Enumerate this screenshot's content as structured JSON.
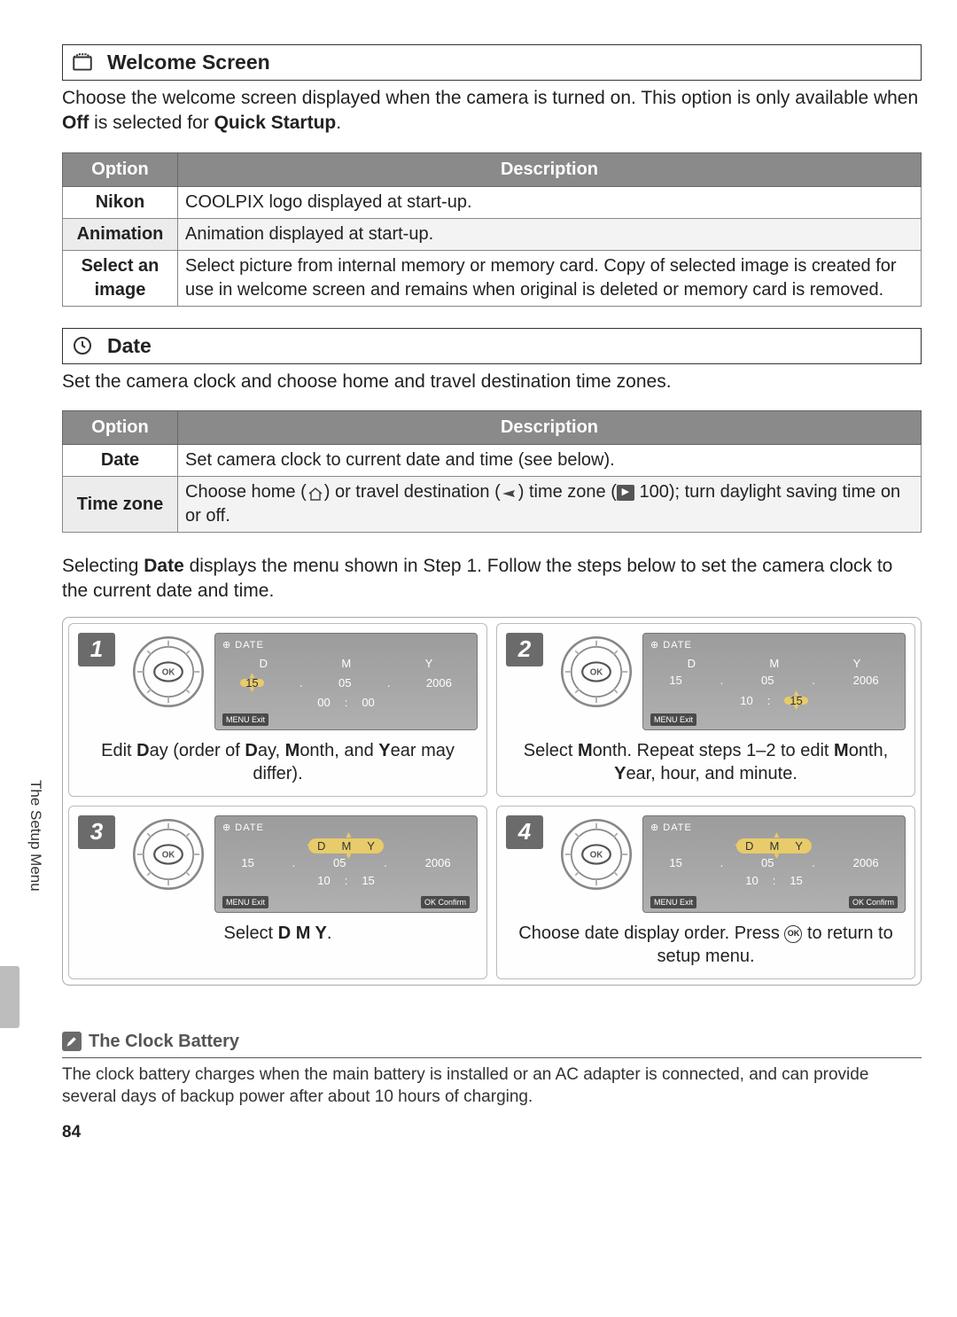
{
  "sections": {
    "welcome": {
      "title": "Welcome Screen",
      "intro_pre": "Choose the welcome screen displayed when the camera is turned on.  This option is only available when ",
      "intro_bold1": "Off",
      "intro_mid": " is selected for ",
      "intro_bold2": "Quick Startup",
      "intro_post": ".",
      "table": {
        "headers": {
          "option": "Option",
          "desc": "Description"
        },
        "rows": [
          {
            "opt": "Nikon",
            "desc": "COOLPIX logo displayed at start-up."
          },
          {
            "opt": "Animation",
            "desc": "Animation displayed at start-up."
          },
          {
            "opt": "Select an image",
            "desc": "Select picture from internal memory or memory card.  Copy of selected image is created for use in welcome screen and remains when original is deleted or memory card is removed."
          }
        ]
      }
    },
    "date": {
      "title": "Date",
      "intro": "Set the camera clock and choose home and travel destination time zones.",
      "table": {
        "headers": {
          "option": "Option",
          "desc": "Description"
        },
        "rows": [
          {
            "opt": "Date",
            "desc": "Set camera clock to current date and time (see below)."
          },
          {
            "opt": "Time zone",
            "desc_parts": {
              "a": "Choose home (",
              "b": ") or travel destination (",
              "c": ") time zone (",
              "ref": "100",
              "d": "); turn daylight saving time on or off."
            }
          }
        ]
      },
      "follow_pre": "Selecting ",
      "follow_bold": "Date",
      "follow_post": " displays the menu shown in Step 1.  Follow the steps below to set the camera clock to the current date and time."
    }
  },
  "steps": {
    "lcd_title": "DATE",
    "menu_exit": "MENU Exit",
    "ok_confirm": "OK Confirm",
    "labels": {
      "d": "D",
      "m": "M",
      "y": "Y"
    },
    "cells": [
      {
        "num": "1",
        "values": {
          "d": "15",
          "m": "05",
          "y": "2006",
          "h": "00",
          "min": "00"
        },
        "highlight": "d",
        "show_confirm": false,
        "pill": false,
        "highlight_min": false,
        "caption_html": "Edit <b>D</b>ay (order of <b>D</b>ay, <b>M</b>onth, and <b>Y</b>ear may differ)."
      },
      {
        "num": "2",
        "values": {
          "d": "15",
          "m": "05",
          "y": "2006",
          "h": "10",
          "min": "15"
        },
        "highlight": "none",
        "highlight_min": true,
        "show_confirm": false,
        "pill": false,
        "caption_html": "Select <b>M</b>onth.  Repeat steps 1–2 to edit <b>M</b>onth, <b>Y</b>ear, hour, and minute."
      },
      {
        "num": "3",
        "values": {
          "d": "15",
          "m": "05",
          "y": "2006",
          "h": "10",
          "min": "15"
        },
        "highlight": "m",
        "show_confirm": true,
        "pill": true,
        "highlight_min": false,
        "caption_html": "Select <b>D M Y</b>."
      },
      {
        "num": "4",
        "values": {
          "d": "15",
          "m": "05",
          "y": "2006",
          "h": "10",
          "min": "15"
        },
        "highlight": "m",
        "show_confirm": true,
        "pill": true,
        "highlight_min": false,
        "caption_html": "Choose date display order.  Press <span class='ok-badge'>OK</span> to return to setup menu."
      }
    ]
  },
  "side_text": "The Setup Menu",
  "note": {
    "title": "The Clock Battery",
    "text": "The clock battery charges when the main battery is installed or an AC adapter is connected, and can provide several days of backup power after about 10 hours of charging."
  },
  "page_number": "84",
  "colors": {
    "header_gray": "#8a8a8a",
    "lcd_bg": "#9c9c9c",
    "highlight": "#e8cb6a",
    "border": "#888"
  }
}
